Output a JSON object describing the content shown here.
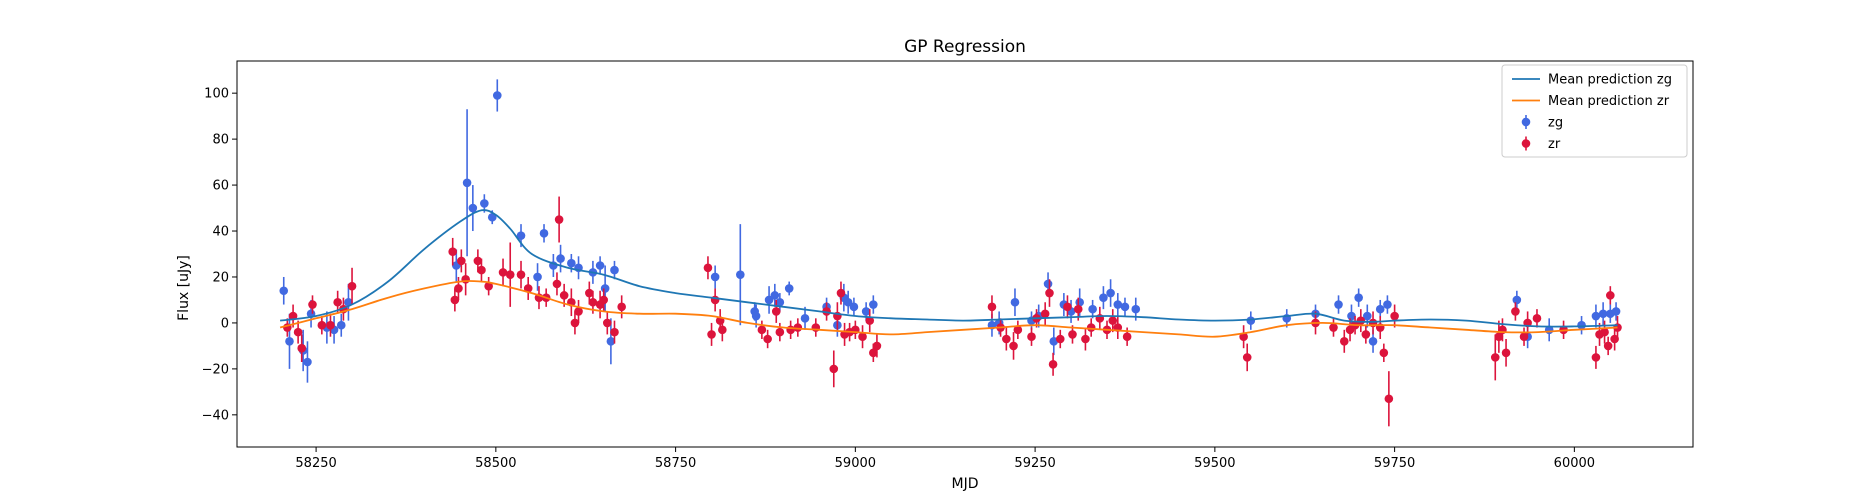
{
  "chart_data": {
    "type": "scatter",
    "title": "GP Regression",
    "xlabel": "MJD",
    "ylabel": "Flux [uJy]",
    "xlim": [
      58140,
      60165
    ],
    "ylim": [
      -54,
      114
    ],
    "xticks": [
      58250,
      58500,
      58750,
      59000,
      59250,
      59500,
      59750,
      60000
    ],
    "yticks": [
      -40,
      -20,
      0,
      20,
      40,
      60,
      80,
      100
    ],
    "grid": false,
    "legend_position": "top-right",
    "colors": {
      "mean_zg": "#1f77b4",
      "mean_zr": "#ff7f0e",
      "zg": "#4169e1",
      "zr": "#dc143c"
    },
    "series": [
      {
        "name": "Mean prediction zg",
        "kind": "line",
        "x": [
          58200,
          58250,
          58300,
          58350,
          58400,
          58450,
          58480,
          58500,
          58520,
          58550,
          58600,
          58650,
          58700,
          58750,
          58800,
          58850,
          58900,
          58950,
          59000,
          59050,
          59100,
          59150,
          59200,
          59250,
          59300,
          59350,
          59400,
          59450,
          59500,
          59550,
          59600,
          59640,
          59680,
          59720,
          59750,
          59800,
          59850,
          59900,
          59950,
          60000,
          60060
        ],
        "y": [
          1,
          3,
          8,
          18,
          32,
          44,
          49,
          47,
          41,
          30,
          24,
          21,
          16,
          13,
          11,
          9,
          7,
          5,
          3,
          2,
          1.5,
          1,
          1.5,
          2,
          2.5,
          3,
          2.5,
          1.5,
          1,
          1.5,
          3,
          4,
          1,
          0.5,
          1,
          1.5,
          1,
          -0.5,
          -1.5,
          -1.5,
          -1
        ]
      },
      {
        "name": "Mean prediction zr",
        "kind": "line",
        "x": [
          58200,
          58250,
          58300,
          58350,
          58400,
          58450,
          58480,
          58500,
          58550,
          58600,
          58650,
          58700,
          58750,
          58800,
          58850,
          58900,
          58950,
          59000,
          59050,
          59100,
          59150,
          59200,
          59250,
          59300,
          59350,
          59400,
          59450,
          59500,
          59550,
          59600,
          59650,
          59700,
          59750,
          59800,
          59850,
          59900,
          59950,
          60000,
          60060
        ],
        "y": [
          -2,
          2,
          6,
          11,
          15,
          18,
          18,
          17,
          13,
          8,
          5,
          4,
          4,
          3,
          0,
          -2,
          -3,
          -4,
          -5,
          -4,
          -3,
          -2,
          -1,
          -2,
          -3,
          -4,
          -5,
          -6,
          -4,
          -1,
          0,
          -1,
          -1,
          -2,
          -3,
          -4,
          -4,
          -3,
          -2
        ]
      },
      {
        "name": "zg",
        "kind": "errorbar",
        "points": [
          [
            58205,
            14,
            6
          ],
          [
            58213,
            -8,
            12
          ],
          [
            58232,
            -12,
            9
          ],
          [
            58238,
            -17,
            9
          ],
          [
            58243,
            4,
            6
          ],
          [
            58265,
            -2,
            7
          ],
          [
            58275,
            -3,
            6
          ],
          [
            58285,
            -1,
            5
          ],
          [
            58295,
            9,
            8
          ],
          [
            58445,
            25,
            7
          ],
          [
            58460,
            61,
            32
          ],
          [
            58468,
            50,
            10
          ],
          [
            58484,
            52,
            4
          ],
          [
            58495,
            46,
            3
          ],
          [
            58502,
            99,
            7
          ],
          [
            58535,
            38,
            5
          ],
          [
            58558,
            20,
            6
          ],
          [
            58567,
            39,
            4
          ],
          [
            58580,
            25,
            5
          ],
          [
            58590,
            28,
            6
          ],
          [
            58605,
            26,
            4
          ],
          [
            58615,
            24,
            5
          ],
          [
            58635,
            22,
            5
          ],
          [
            58645,
            25,
            4
          ],
          [
            58652,
            15,
            10
          ],
          [
            58660,
            -8,
            10
          ],
          [
            58665,
            23,
            4
          ],
          [
            58805,
            20,
            5
          ],
          [
            58840,
            21,
            22
          ],
          [
            58860,
            5,
            4
          ],
          [
            58862,
            3,
            5
          ],
          [
            58880,
            10,
            6
          ],
          [
            58888,
            12,
            5
          ],
          [
            58895,
            9,
            4
          ],
          [
            58908,
            15,
            3
          ],
          [
            58930,
            2,
            5
          ],
          [
            58960,
            7,
            4
          ],
          [
            58975,
            -1,
            5
          ],
          [
            58984,
            11,
            6
          ],
          [
            58990,
            9,
            5
          ],
          [
            58998,
            7,
            4
          ],
          [
            59015,
            5,
            4
          ],
          [
            59025,
            8,
            4
          ],
          [
            59190,
            -1,
            5
          ],
          [
            59200,
            0,
            5
          ],
          [
            59222,
            9,
            6
          ],
          [
            59245,
            1,
            4
          ],
          [
            59255,
            3,
            5
          ],
          [
            59268,
            17,
            5
          ],
          [
            59276,
            -8,
            6
          ],
          [
            59290,
            8,
            5
          ],
          [
            59300,
            5,
            5
          ],
          [
            59312,
            9,
            6
          ],
          [
            59330,
            6,
            4
          ],
          [
            59345,
            11,
            5
          ],
          [
            59355,
            13,
            6
          ],
          [
            59365,
            8,
            5
          ],
          [
            59375,
            7,
            4
          ],
          [
            59390,
            6,
            5
          ],
          [
            59550,
            1,
            4
          ],
          [
            59600,
            2,
            4
          ],
          [
            59640,
            4,
            4
          ],
          [
            59672,
            8,
            4
          ],
          [
            59690,
            3,
            5
          ],
          [
            59700,
            11,
            4
          ],
          [
            59712,
            3,
            5
          ],
          [
            59720,
            -8,
            5
          ],
          [
            59730,
            6,
            4
          ],
          [
            59740,
            8,
            4
          ],
          [
            59920,
            10,
            4
          ],
          [
            59935,
            -6,
            5
          ],
          [
            59965,
            -3,
            5
          ],
          [
            60010,
            -1,
            4
          ],
          [
            60030,
            3,
            5
          ],
          [
            60040,
            4,
            5
          ],
          [
            60050,
            4,
            4
          ],
          [
            60058,
            5,
            4
          ]
        ]
      },
      {
        "name": "zr",
        "kind": "errorbar",
        "points": [
          [
            58210,
            -2,
            4
          ],
          [
            58218,
            3,
            5
          ],
          [
            58225,
            -4,
            5
          ],
          [
            58230,
            -11,
            6
          ],
          [
            58245,
            8,
            4
          ],
          [
            58258,
            -1,
            4
          ],
          [
            58270,
            -1,
            5
          ],
          [
            58280,
            9,
            5
          ],
          [
            58288,
            6,
            5
          ],
          [
            58300,
            16,
            8
          ],
          [
            58440,
            31,
            6
          ],
          [
            58443,
            10,
            5
          ],
          [
            58448,
            15,
            5
          ],
          [
            58452,
            27,
            5
          ],
          [
            58458,
            19,
            7
          ],
          [
            58475,
            27,
            5
          ],
          [
            58480,
            23,
            5
          ],
          [
            58490,
            16,
            4
          ],
          [
            58510,
            22,
            6
          ],
          [
            58520,
            21,
            14
          ],
          [
            58535,
            21,
            6
          ],
          [
            58545,
            15,
            5
          ],
          [
            58560,
            11,
            5
          ],
          [
            58570,
            11,
            4
          ],
          [
            58585,
            17,
            5
          ],
          [
            58588,
            45,
            10
          ],
          [
            58595,
            12,
            5
          ],
          [
            58605,
            9,
            6
          ],
          [
            58610,
            0,
            5
          ],
          [
            58615,
            5,
            5
          ],
          [
            58630,
            13,
            5
          ],
          [
            58635,
            9,
            5
          ],
          [
            58645,
            8,
            6
          ],
          [
            58650,
            10,
            5
          ],
          [
            58655,
            0,
            5
          ],
          [
            58665,
            -4,
            5
          ],
          [
            58675,
            7,
            5
          ],
          [
            58795,
            24,
            5
          ],
          [
            58800,
            -5,
            5
          ],
          [
            58805,
            10,
            5
          ],
          [
            58812,
            1,
            5
          ],
          [
            58815,
            -3,
            5
          ],
          [
            58870,
            -3,
            4
          ],
          [
            58878,
            -7,
            4
          ],
          [
            58890,
            5,
            5
          ],
          [
            58895,
            -4,
            4
          ],
          [
            58910,
            -3,
            4
          ],
          [
            58920,
            -2,
            4
          ],
          [
            58945,
            -2,
            4
          ],
          [
            58960,
            5,
            4
          ],
          [
            58970,
            -20,
            8
          ],
          [
            58975,
            3,
            6
          ],
          [
            58980,
            13,
            5
          ],
          [
            58985,
            -5,
            5
          ],
          [
            58992,
            -4,
            4
          ],
          [
            59000,
            -3,
            4
          ],
          [
            59010,
            -6,
            5
          ],
          [
            59020,
            1,
            5
          ],
          [
            59025,
            -13,
            4
          ],
          [
            59030,
            -10,
            5
          ],
          [
            59190,
            7,
            5
          ],
          [
            59202,
            -2,
            4
          ],
          [
            59210,
            -7,
            5
          ],
          [
            59220,
            -10,
            6
          ],
          [
            59226,
            -3,
            4
          ],
          [
            59245,
            -6,
            4
          ],
          [
            59252,
            2,
            4
          ],
          [
            59264,
            4,
            5
          ],
          [
            59270,
            13,
            6
          ],
          [
            59275,
            -18,
            5
          ],
          [
            59285,
            -7,
            4
          ],
          [
            59295,
            7,
            5
          ],
          [
            59302,
            -5,
            4
          ],
          [
            59310,
            6,
            5
          ],
          [
            59320,
            -7,
            5
          ],
          [
            59328,
            -2,
            4
          ],
          [
            59340,
            2,
            5
          ],
          [
            59350,
            -3,
            4
          ],
          [
            59358,
            1,
            5
          ],
          [
            59365,
            -2,
            5
          ],
          [
            59378,
            -6,
            4
          ],
          [
            59540,
            -6,
            5
          ],
          [
            59545,
            -15,
            6
          ],
          [
            59640,
            0,
            5
          ],
          [
            59665,
            -2,
            4
          ],
          [
            59680,
            -8,
            5
          ],
          [
            59688,
            -3,
            5
          ],
          [
            59695,
            -1,
            4
          ],
          [
            59703,
            1,
            5
          ],
          [
            59710,
            -5,
            4
          ],
          [
            59720,
            0,
            5
          ],
          [
            59730,
            -2,
            5
          ],
          [
            59735,
            -13,
            4
          ],
          [
            59742,
            -33,
            12
          ],
          [
            59750,
            3,
            5
          ],
          [
            59890,
            -15,
            10
          ],
          [
            59895,
            -6,
            7
          ],
          [
            59900,
            -3,
            5
          ],
          [
            59905,
            -13,
            6
          ],
          [
            59918,
            5,
            4
          ],
          [
            59930,
            -6,
            4
          ],
          [
            59935,
            0,
            5
          ],
          [
            59948,
            2,
            4
          ],
          [
            59985,
            -3,
            4
          ],
          [
            60030,
            -15,
            5
          ],
          [
            60035,
            -5,
            5
          ],
          [
            60042,
            -4,
            5
          ],
          [
            60047,
            -10,
            4
          ],
          [
            60050,
            12,
            4
          ],
          [
            60056,
            -7,
            5
          ],
          [
            60060,
            -2,
            5
          ]
        ]
      }
    ]
  }
}
